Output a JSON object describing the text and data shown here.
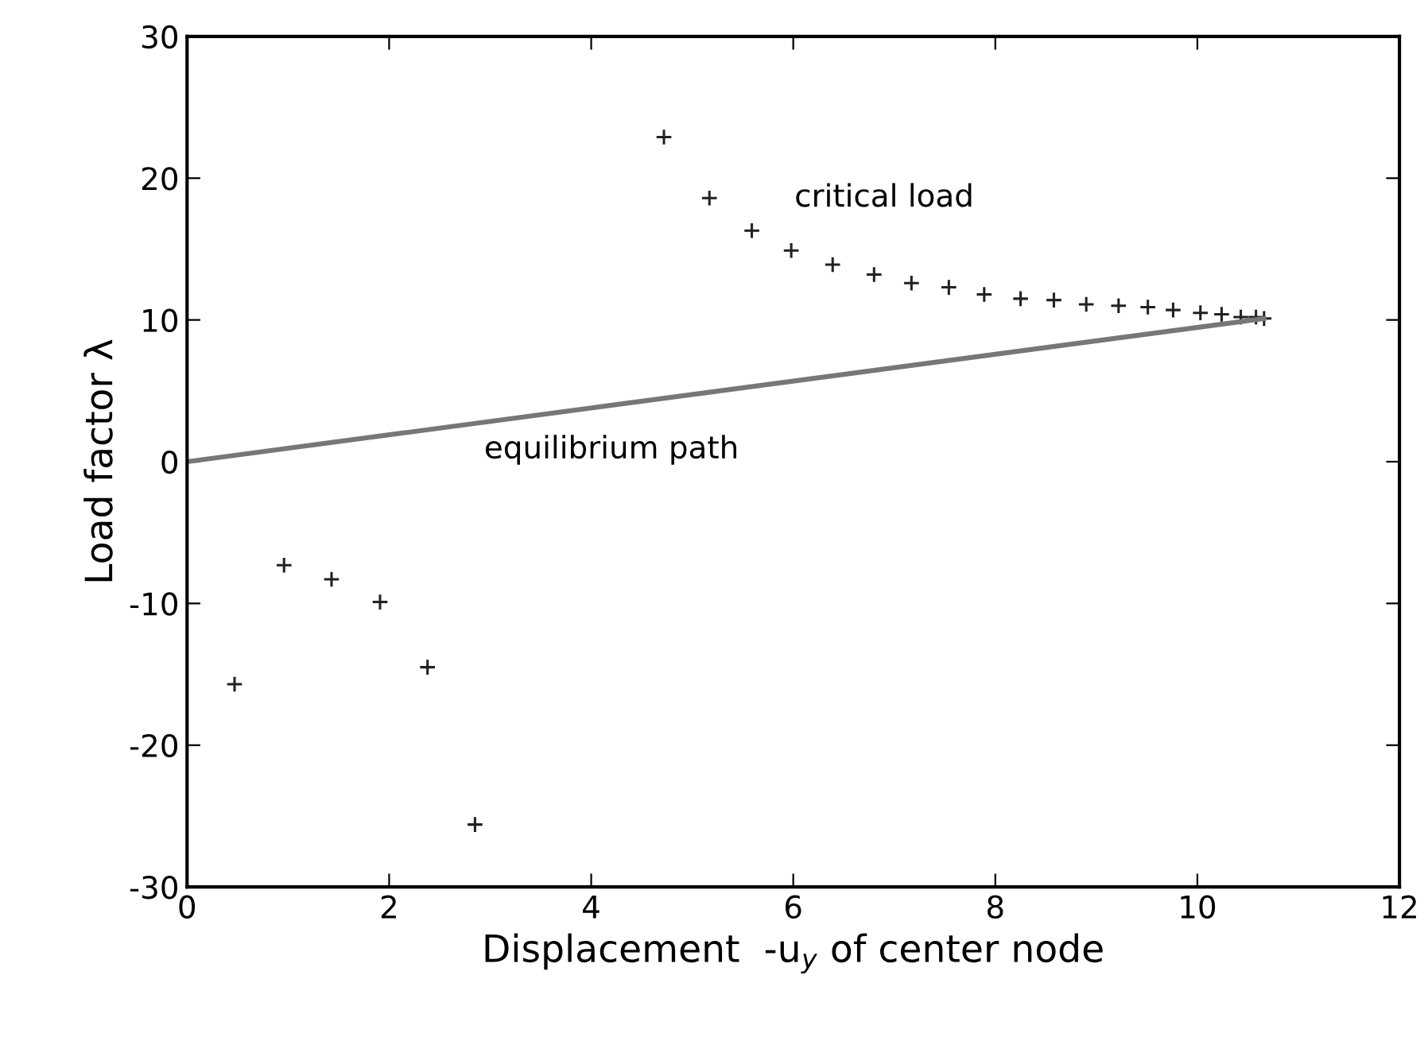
{
  "chart_data": {
    "type": "scatter",
    "xlabel": "Displacement  -u$_{y}$ of center node",
    "ylabel": "Load factor λ",
    "xlim": [
      0,
      12
    ],
    "xticks": [
      0,
      2,
      4,
      6,
      8,
      10,
      12
    ],
    "ylim": [
      -30,
      30
    ],
    "yticks": [
      -30,
      -20,
      -10,
      0,
      10,
      20,
      30
    ],
    "grid": false,
    "legend": false,
    "series": [
      {
        "marker": "cross",
        "color": "#222222",
        "x": [
          0.47,
          0.96,
          1.43,
          1.91,
          2.38,
          2.85
        ],
        "values": [
          -15.7,
          -7.3,
          -8.3,
          -9.9,
          -14.5,
          -25.6
        ]
      },
      {
        "marker": "cross",
        "color": "#222222",
        "x": [
          4.72,
          5.17,
          5.59,
          5.98,
          6.39,
          6.8,
          7.17,
          7.54,
          7.89,
          8.25,
          8.58,
          8.9,
          9.22,
          9.51,
          9.76,
          10.03,
          10.24,
          10.43,
          10.58,
          10.66
        ],
        "values": [
          22.9,
          18.6,
          16.3,
          14.9,
          13.9,
          13.2,
          12.6,
          12.3,
          11.8,
          11.5,
          11.4,
          11.1,
          11.0,
          10.9,
          10.7,
          10.5,
          10.4,
          10.2,
          10.2,
          10.1
        ]
      },
      {
        "type": "line",
        "marker": "none",
        "line_style": "solid",
        "color": "#777777",
        "x": [
          0,
          10.66
        ],
        "values": [
          0,
          10.1
        ]
      }
    ],
    "annotations": [
      "critical load",
      "equilibrium path"
    ]
  }
}
